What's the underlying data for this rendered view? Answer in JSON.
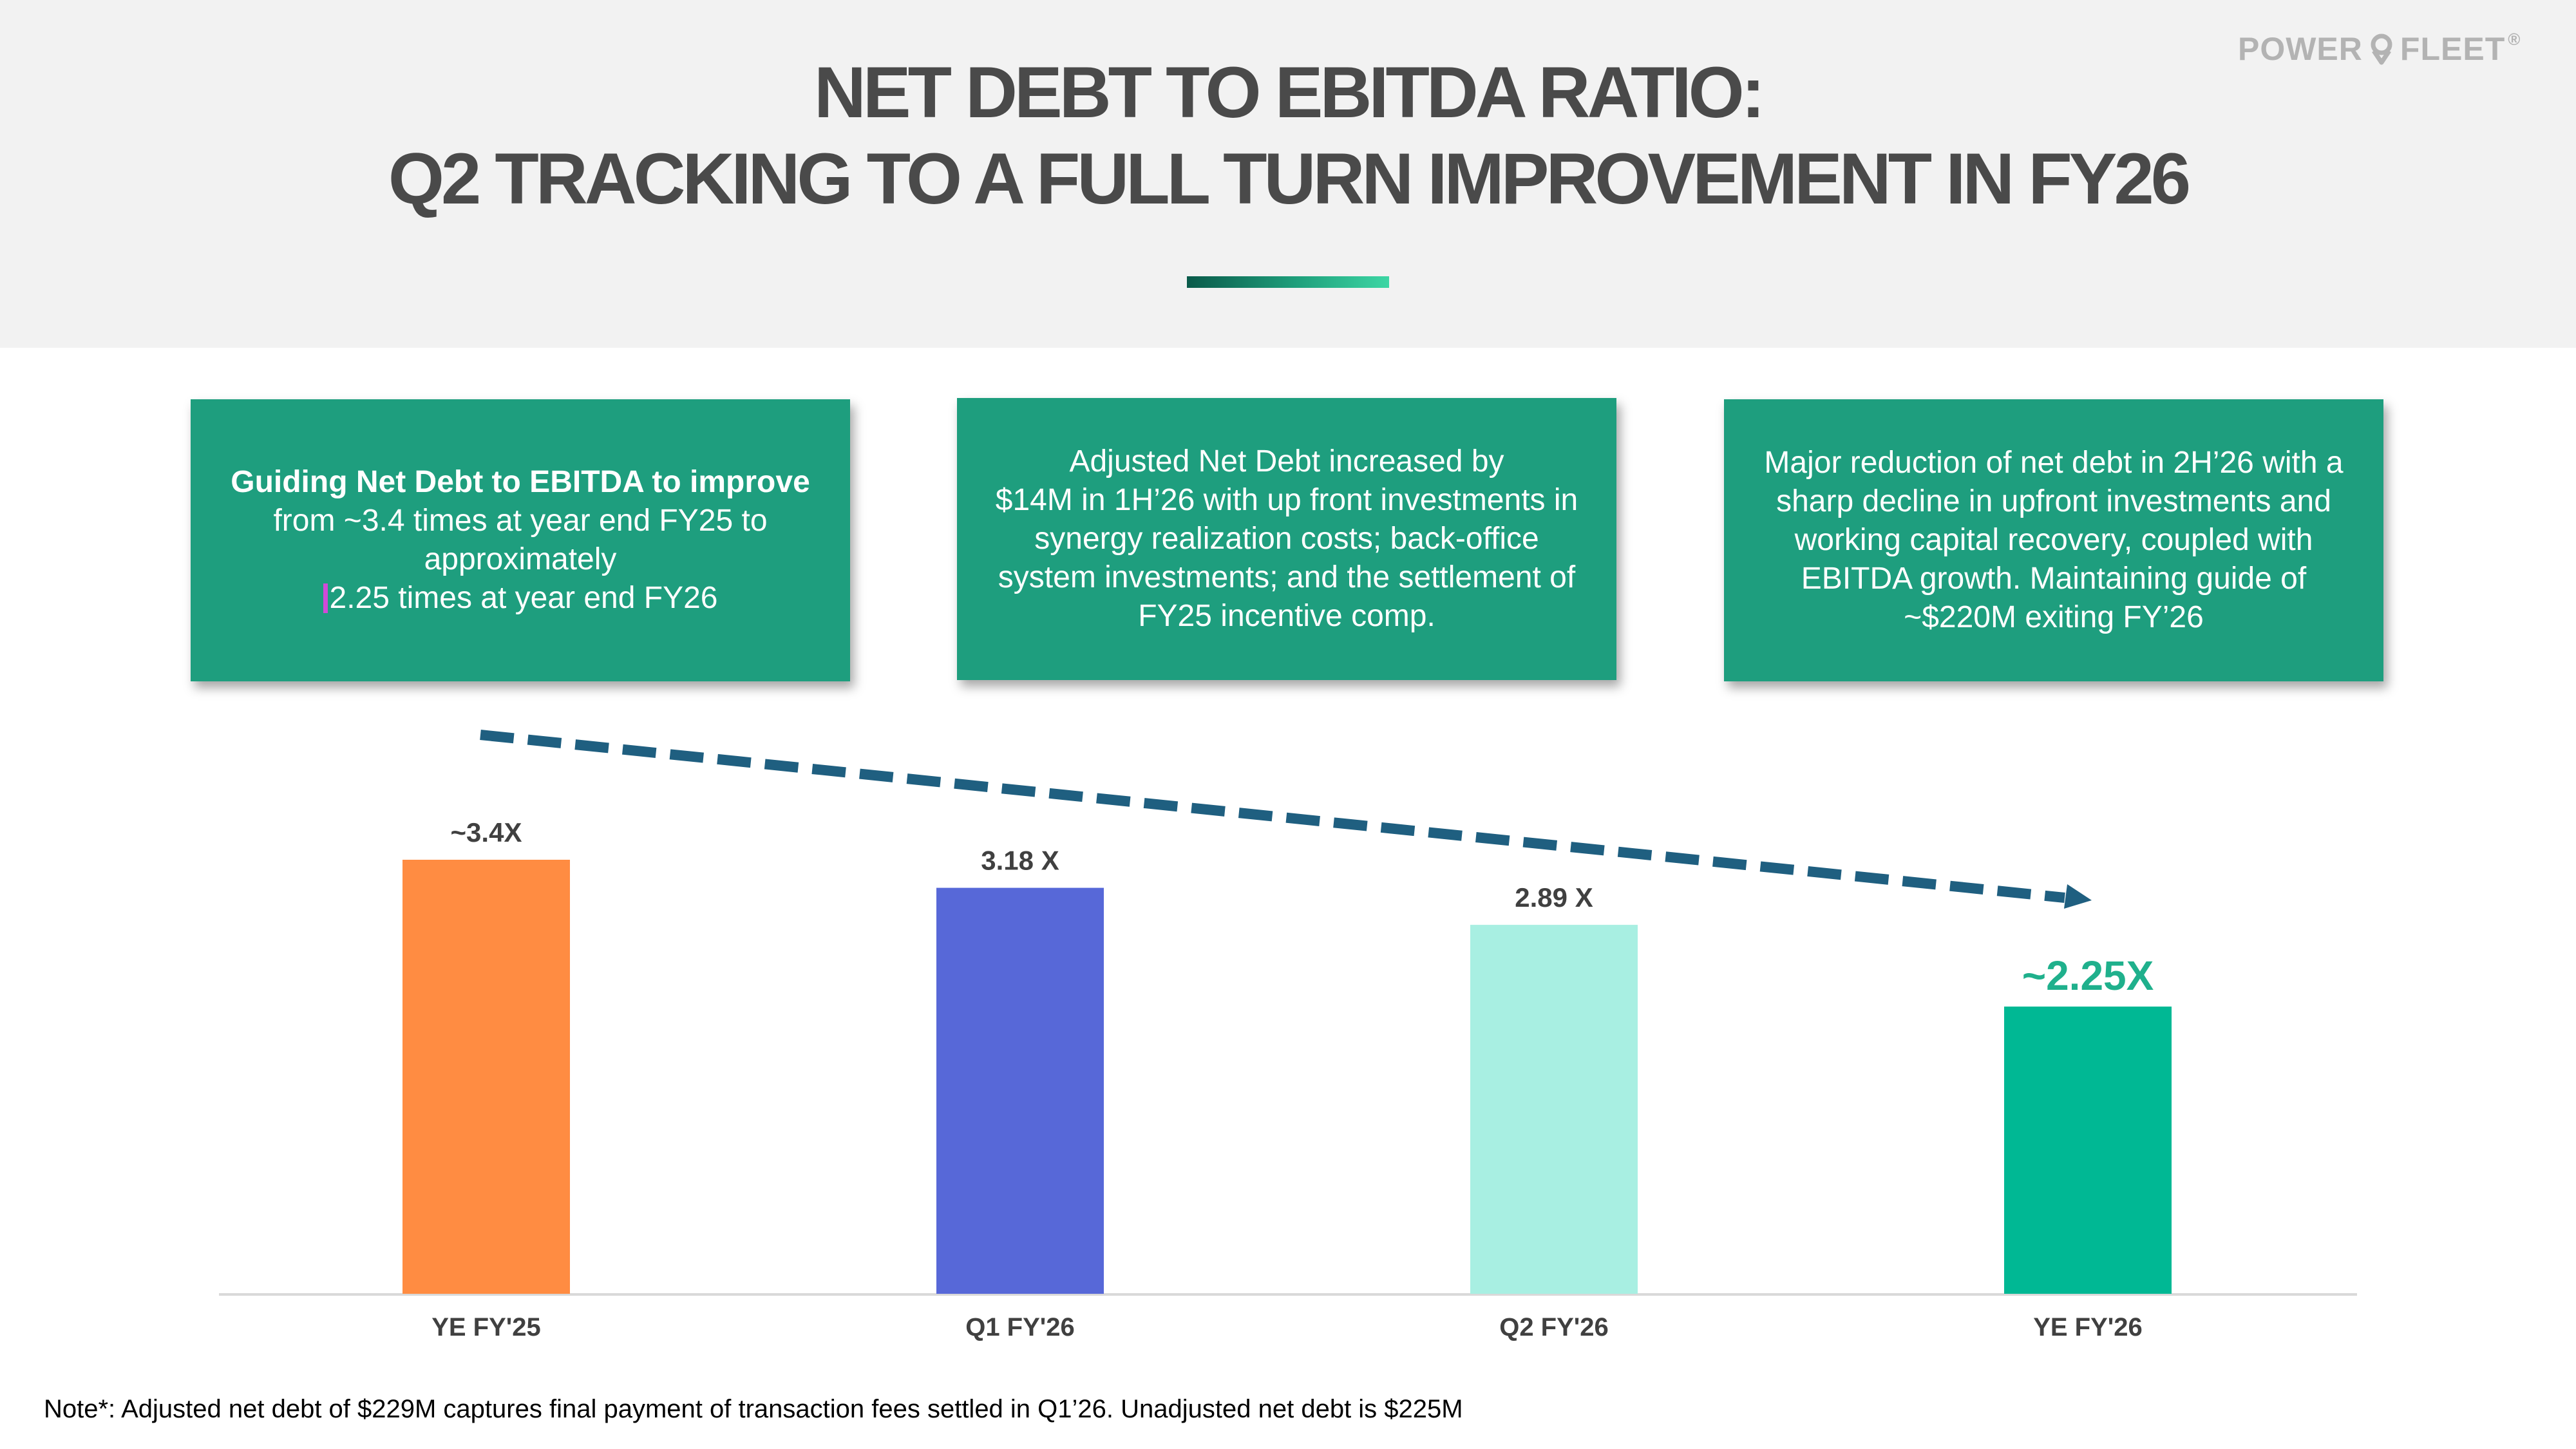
{
  "header": {
    "title_line1": "NET DEBT TO EBITDA RATIO:",
    "title_line2": "Q2 TRACKING TO A FULL TURN IMPROVEMENT IN FY26",
    "logo_left": "POWER",
    "logo_right": "FLEET",
    "logo_mark": "®"
  },
  "boxes": [
    {
      "bold": "Guiding Net Debt to EBITDA to improve",
      "lines": [
        "from ~3.4 times at year end FY25 to",
        "approximately",
        "2.25 times at year end FY26"
      ]
    },
    {
      "lines": [
        "Adjusted Net Debt increased by",
        "$14M in 1H’26 with up front investments in",
        "synergy realization costs; back-office",
        "system investments; and the settlement of",
        "FY25 incentive comp."
      ]
    },
    {
      "lines": [
        "Major reduction of net debt in 2H’26 with a",
        "sharp decline in upfront investments and",
        "working capital recovery, coupled with",
        "EBITDA growth. Maintaining guide of",
        "~$220M exiting FY’26"
      ]
    }
  ],
  "chart_data": {
    "type": "bar",
    "categories": [
      "YE FY'25",
      "Q1 FY'26",
      "Q2 FY'26",
      "YE FY'26"
    ],
    "values": [
      3.4,
      3.18,
      2.89,
      2.25
    ],
    "data_labels": [
      "~3.4X",
      "3.18 X",
      "2.89 X",
      "~2.25X"
    ],
    "colors": [
      "#ff8c42",
      "#5768d8",
      "#a8efe2",
      "#00b894"
    ],
    "highlight_label_color": "#1fb08c",
    "label_color": "#404040",
    "axis_color": "#d9d9d9",
    "trend_arrow_color": "#1f5f80",
    "ylim": [
      0,
      3.4
    ],
    "grid": false,
    "title": "",
    "xlabel": "",
    "ylabel": ""
  },
  "footer": {
    "note": "Note*: Adjusted net debt of $229M captures final payment of transaction fees settled in Q1’26.  Unadjusted net debt is $225M"
  }
}
